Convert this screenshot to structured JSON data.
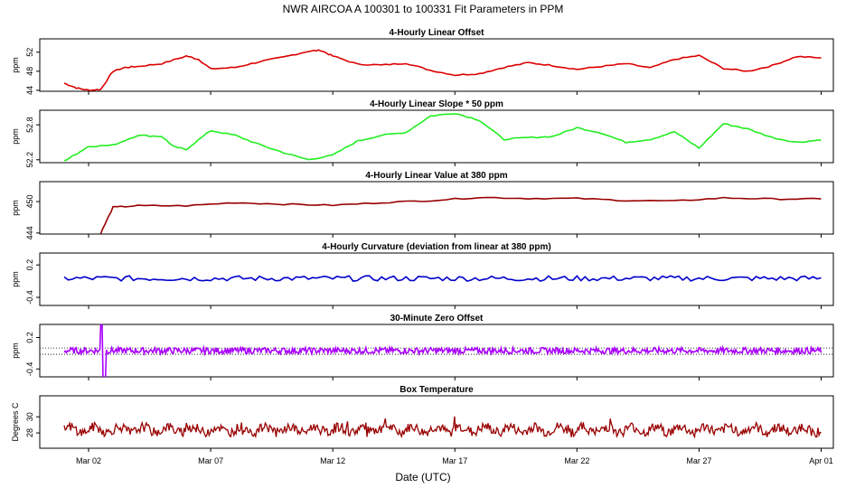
{
  "chart_data": {
    "title": "NWR   AIRCOA A   100301 to 100331   Fit Parameters in PPM",
    "xlabel": "Date (UTC)",
    "xlim": [
      "2010-02-28T00:00",
      "2010-04-01T12:00"
    ],
    "x_ticks": [
      {
        "date": "2010-03-02",
        "label": "Mar 02"
      },
      {
        "date": "2010-03-07",
        "label": "Mar 07"
      },
      {
        "date": "2010-03-12",
        "label": "Mar 12"
      },
      {
        "date": "2010-03-17",
        "label": "Mar 17"
      },
      {
        "date": "2010-03-22",
        "label": "Mar 22"
      },
      {
        "date": "2010-03-27",
        "label": "Mar 27"
      },
      {
        "date": "2010-04-01",
        "label": "Apr 01"
      }
    ],
    "panels": [
      {
        "title": "4-Hourly Linear Offset",
        "type": "line",
        "ylabel": "ppm",
        "ylim": [
          43.8,
          54.8
        ],
        "yticks": [
          44,
          48,
          52
        ],
        "color": "#dd0000",
        "x": [
          "2010-03-01",
          "2010-03-01T12:00",
          "2010-03-02",
          "2010-03-02T12:00",
          "2010-03-03",
          "2010-03-03T12:00",
          "2010-03-04",
          "2010-03-05",
          "2010-03-06",
          "2010-03-06T12:00",
          "2010-03-07",
          "2010-03-08",
          "2010-03-09",
          "2010-03-10",
          "2010-03-11",
          "2010-03-11T12:00",
          "2010-03-12",
          "2010-03-13",
          "2010-03-14",
          "2010-03-15",
          "2010-03-16",
          "2010-03-17",
          "2010-03-18",
          "2010-03-19",
          "2010-03-20",
          "2010-03-21",
          "2010-03-22",
          "2010-03-23",
          "2010-03-24",
          "2010-03-25",
          "2010-03-26",
          "2010-03-27",
          "2010-03-28",
          "2010-03-29",
          "2010-03-30",
          "2010-03-31",
          "2010-04-01"
        ],
        "y": [
          45.5,
          44.5,
          44.0,
          44.2,
          48.0,
          48.8,
          49.0,
          49.6,
          51.2,
          50.5,
          48.5,
          48.8,
          50.0,
          51.0,
          52.2,
          52.4,
          51.2,
          49.5,
          49.3,
          49.7,
          48.2,
          47.2,
          47.5,
          48.8,
          49.8,
          49.2,
          48.4,
          49.0,
          49.6,
          48.7,
          50.5,
          51.3,
          48.6,
          48.0,
          49.2,
          51.1,
          50.8
        ]
      },
      {
        "title": "4-Hourly Linear Slope * 50 ppm",
        "type": "line",
        "ylabel": "ppm",
        "ylim": [
          52.15,
          53.05
        ],
        "yticks": [
          52.2,
          52.8
        ],
        "color": "#22ee22",
        "x": [
          "2010-03-01",
          "2010-03-01T12:00",
          "2010-03-02",
          "2010-03-03",
          "2010-03-04",
          "2010-03-05",
          "2010-03-05T12:00",
          "2010-03-06",
          "2010-03-07",
          "2010-03-08",
          "2010-03-09",
          "2010-03-10",
          "2010-03-11",
          "2010-03-12",
          "2010-03-13",
          "2010-03-14",
          "2010-03-15",
          "2010-03-16",
          "2010-03-17",
          "2010-03-18",
          "2010-03-19",
          "2010-03-20",
          "2010-03-21",
          "2010-03-22",
          "2010-03-23",
          "2010-03-24",
          "2010-03-25",
          "2010-03-26",
          "2010-03-27",
          "2010-03-28",
          "2010-03-29",
          "2010-03-30",
          "2010-03-31",
          "2010-04-01"
        ],
        "y": [
          52.18,
          52.3,
          52.43,
          52.45,
          52.62,
          52.6,
          52.42,
          52.38,
          52.7,
          52.62,
          52.46,
          52.32,
          52.2,
          52.28,
          52.52,
          52.62,
          52.67,
          52.95,
          53.0,
          52.88,
          52.55,
          52.58,
          52.6,
          52.75,
          52.66,
          52.5,
          52.55,
          52.68,
          52.4,
          52.82,
          52.73,
          52.58,
          52.5,
          52.54
        ]
      },
      {
        "title": "4-Hourly Linear Value at 380 ppm",
        "type": "line",
        "ylabel": "ppm",
        "ylim": [
          443.8,
          453.8
        ],
        "yticks": [
          444,
          450
        ],
        "color": "#990000",
        "x": [
          "2010-03-02T12:00",
          "2010-03-03",
          "2010-03-04",
          "2010-03-06",
          "2010-03-08",
          "2010-03-10",
          "2010-03-12",
          "2010-03-14",
          "2010-03-16",
          "2010-03-18",
          "2010-03-20",
          "2010-03-22",
          "2010-03-24",
          "2010-03-26",
          "2010-03-28",
          "2010-03-30",
          "2010-04-01"
        ],
        "y": [
          444.0,
          448.9,
          449.2,
          449.2,
          449.8,
          449.5,
          449.3,
          449.8,
          450.2,
          450.8,
          450.6,
          450.6,
          450.2,
          450.1,
          450.7,
          450.5,
          450.5
        ]
      },
      {
        "title": "4-Hourly Curvature (deviation from linear at 380 ppm)",
        "type": "line",
        "ylabel": "ppm",
        "ylim": [
          -0.55,
          0.42
        ],
        "yticks": [
          -0.4,
          0.2
        ],
        "color": "#0000cc",
        "base": -0.05,
        "amp": 0.1,
        "x_start": "2010-03-01",
        "x_end": "2010-04-01"
      },
      {
        "title": "30-Minute Zero Offset",
        "type": "line",
        "ylabel": "ppm",
        "ylim": [
          -0.55,
          0.45
        ],
        "yticks": [
          -0.4,
          0.2
        ],
        "color": "#aa00ff",
        "base": -0.05,
        "amp": 0.12,
        "ref_lines": [
          0.0,
          -0.12
        ],
        "spike_date": "2010-03-02T14:00",
        "x_start": "2010-03-01",
        "x_end": "2010-04-01"
      },
      {
        "title": "Box Temperature",
        "type": "line",
        "ylabel": "Degrees C",
        "ylim": [
          26.1,
          32.6
        ],
        "yticks": [
          28,
          30
        ],
        "color": "#990000",
        "base": 28.4,
        "amp": 1.2,
        "x_start": "2010-03-01",
        "x_end": "2010-04-01"
      }
    ]
  }
}
